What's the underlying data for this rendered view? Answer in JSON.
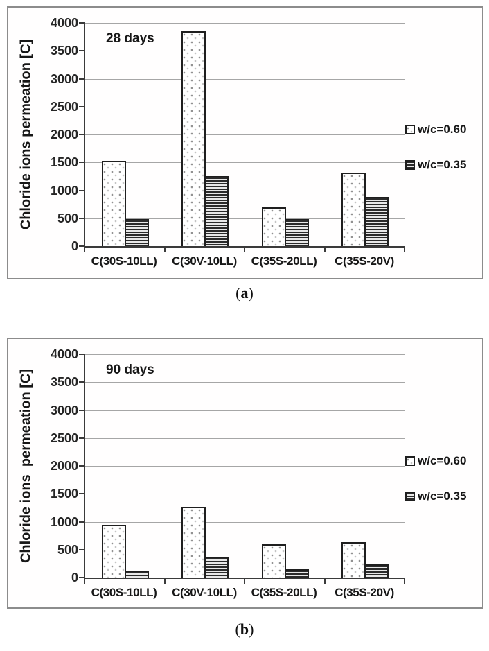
{
  "figure": {
    "captions": [
      {
        "open": "(",
        "letter": "a",
        "close": ")"
      },
      {
        "open": "(",
        "letter": "b",
        "close": ")"
      }
    ]
  },
  "colors": {
    "panel_border": "#8c8c8c",
    "gridline": "#a6a6a6",
    "axis": "#3a3a3a",
    "bar_border": "#1f1f1f",
    "stripe_dark": "#2b2b2b",
    "stripe_light": "#e8e8e8",
    "dot": "#8f8f8f",
    "text": "#171717",
    "background": "#ffffff"
  },
  "chart_data": [
    {
      "type": "bar",
      "panel": "a",
      "annotation": "28 days",
      "y_axis_title": "Chloride ions permeation [C]",
      "ylabel": "Chloride ions permeation [C]",
      "xlabel": "",
      "ylim": [
        0,
        4000
      ],
      "y_tick_step": 500,
      "y_ticks": [
        4000,
        3500,
        3000,
        2500,
        2000,
        1500,
        1000,
        500,
        0
      ],
      "grid": true,
      "legend_position": "right-outside",
      "categories": [
        "C(30S-10LL)",
        "C(30V-10LL)",
        "C(35S-20LL)",
        "C(35S-20V)"
      ],
      "series": [
        {
          "name": "w/c=0.60",
          "pattern": "dots",
          "values": [
            1530,
            3850,
            700,
            1320
          ]
        },
        {
          "name": "w/c=0.35",
          "pattern": "hlines",
          "values": [
            490,
            1250,
            490,
            880
          ]
        }
      ]
    },
    {
      "type": "bar",
      "panel": "b",
      "annotation": "90 days",
      "y_axis_title": "Chloride ions  permeation [C]",
      "ylabel": "Chloride ions  permeation [C]",
      "xlabel": "",
      "ylim": [
        0,
        4000
      ],
      "y_tick_step": 500,
      "y_ticks": [
        4000,
        3500,
        3000,
        2500,
        2000,
        1500,
        1000,
        500,
        0
      ],
      "grid": true,
      "legend_position": "right-outside",
      "categories": [
        "C(30S-10LL)",
        "C(30V-10LL)",
        "C(35S-20LL)",
        "C(35S-20V)"
      ],
      "series": [
        {
          "name": "w/c=0.60",
          "pattern": "dots",
          "values": [
            950,
            1270,
            600,
            630
          ]
        },
        {
          "name": "w/c=0.35",
          "pattern": "hlines",
          "values": [
            120,
            370,
            150,
            230
          ]
        }
      ]
    }
  ]
}
